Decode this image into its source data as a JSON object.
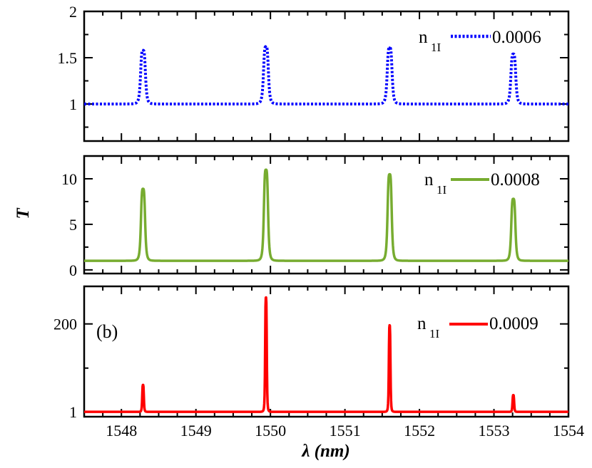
{
  "chart_data": {
    "type": "line",
    "xlabel": {
      "symbol": "λ",
      "unit": " (nm)"
    },
    "ylabel": "T",
    "xlim": [
      1547.5,
      1554
    ],
    "x_ticks": [
      1548,
      1549,
      1550,
      1551,
      1552,
      1553,
      1554
    ],
    "x_tick_labels": [
      "1548",
      "1549",
      "1550",
      "1551",
      "1552",
      "1553",
      "1554"
    ],
    "panels": [
      {
        "id": "top",
        "ylim": [
          0.6,
          2.0
        ],
        "y_ticks": [
          1,
          1.5,
          2
        ],
        "y_tick_labels": [
          "1",
          "1.5",
          "2"
        ],
        "y_minor": [
          0.75,
          1.25,
          1.75
        ],
        "series": {
          "name": "n_1I",
          "param_label": "0.0006",
          "color": "#0000ff",
          "style": "dotted",
          "baseline": 1.0,
          "peak_halfwidth": 0.035,
          "peaks": [
            {
              "x": 1548.29,
              "y": 1.58
            },
            {
              "x": 1549.94,
              "y": 1.62
            },
            {
              "x": 1551.6,
              "y": 1.61
            },
            {
              "x": 1553.26,
              "y": 1.54
            }
          ]
        }
      },
      {
        "id": "middle",
        "ylim": [
          -0.4,
          12.5
        ],
        "y_ticks": [
          0,
          5,
          10
        ],
        "y_tick_labels": [
          "0",
          "5",
          "10"
        ],
        "y_minor": [
          2.5,
          7.5
        ],
        "series": {
          "name": "n_1I",
          "param_label": "0.0008",
          "color": "#77ac30",
          "style": "solid",
          "baseline": 1.0,
          "peak_halfwidth": 0.03,
          "peaks": [
            {
              "x": 1548.29,
              "y": 8.9
            },
            {
              "x": 1549.94,
              "y": 11.0
            },
            {
              "x": 1551.6,
              "y": 10.5
            },
            {
              "x": 1553.26,
              "y": 7.8
            }
          ]
        }
      },
      {
        "id": "bottom",
        "ylim": [
          -10,
          285
        ],
        "y_ticks": [
          1,
          200
        ],
        "y_tick_labels": [
          "1",
          "200"
        ],
        "y_minor": [
          100
        ],
        "series": {
          "name": "n_1I",
          "param_label": "0.0009",
          "color": "#ff0000",
          "style": "solid",
          "baseline": 1.0,
          "peak_halfwidth": 0.012,
          "peaks": [
            {
              "x": 1548.29,
              "y": 62
            },
            {
              "x": 1549.94,
              "y": 260
            },
            {
              "x": 1551.6,
              "y": 197
            },
            {
              "x": 1553.26,
              "y": 39
            }
          ]
        }
      }
    ],
    "annotation": "(b)"
  }
}
